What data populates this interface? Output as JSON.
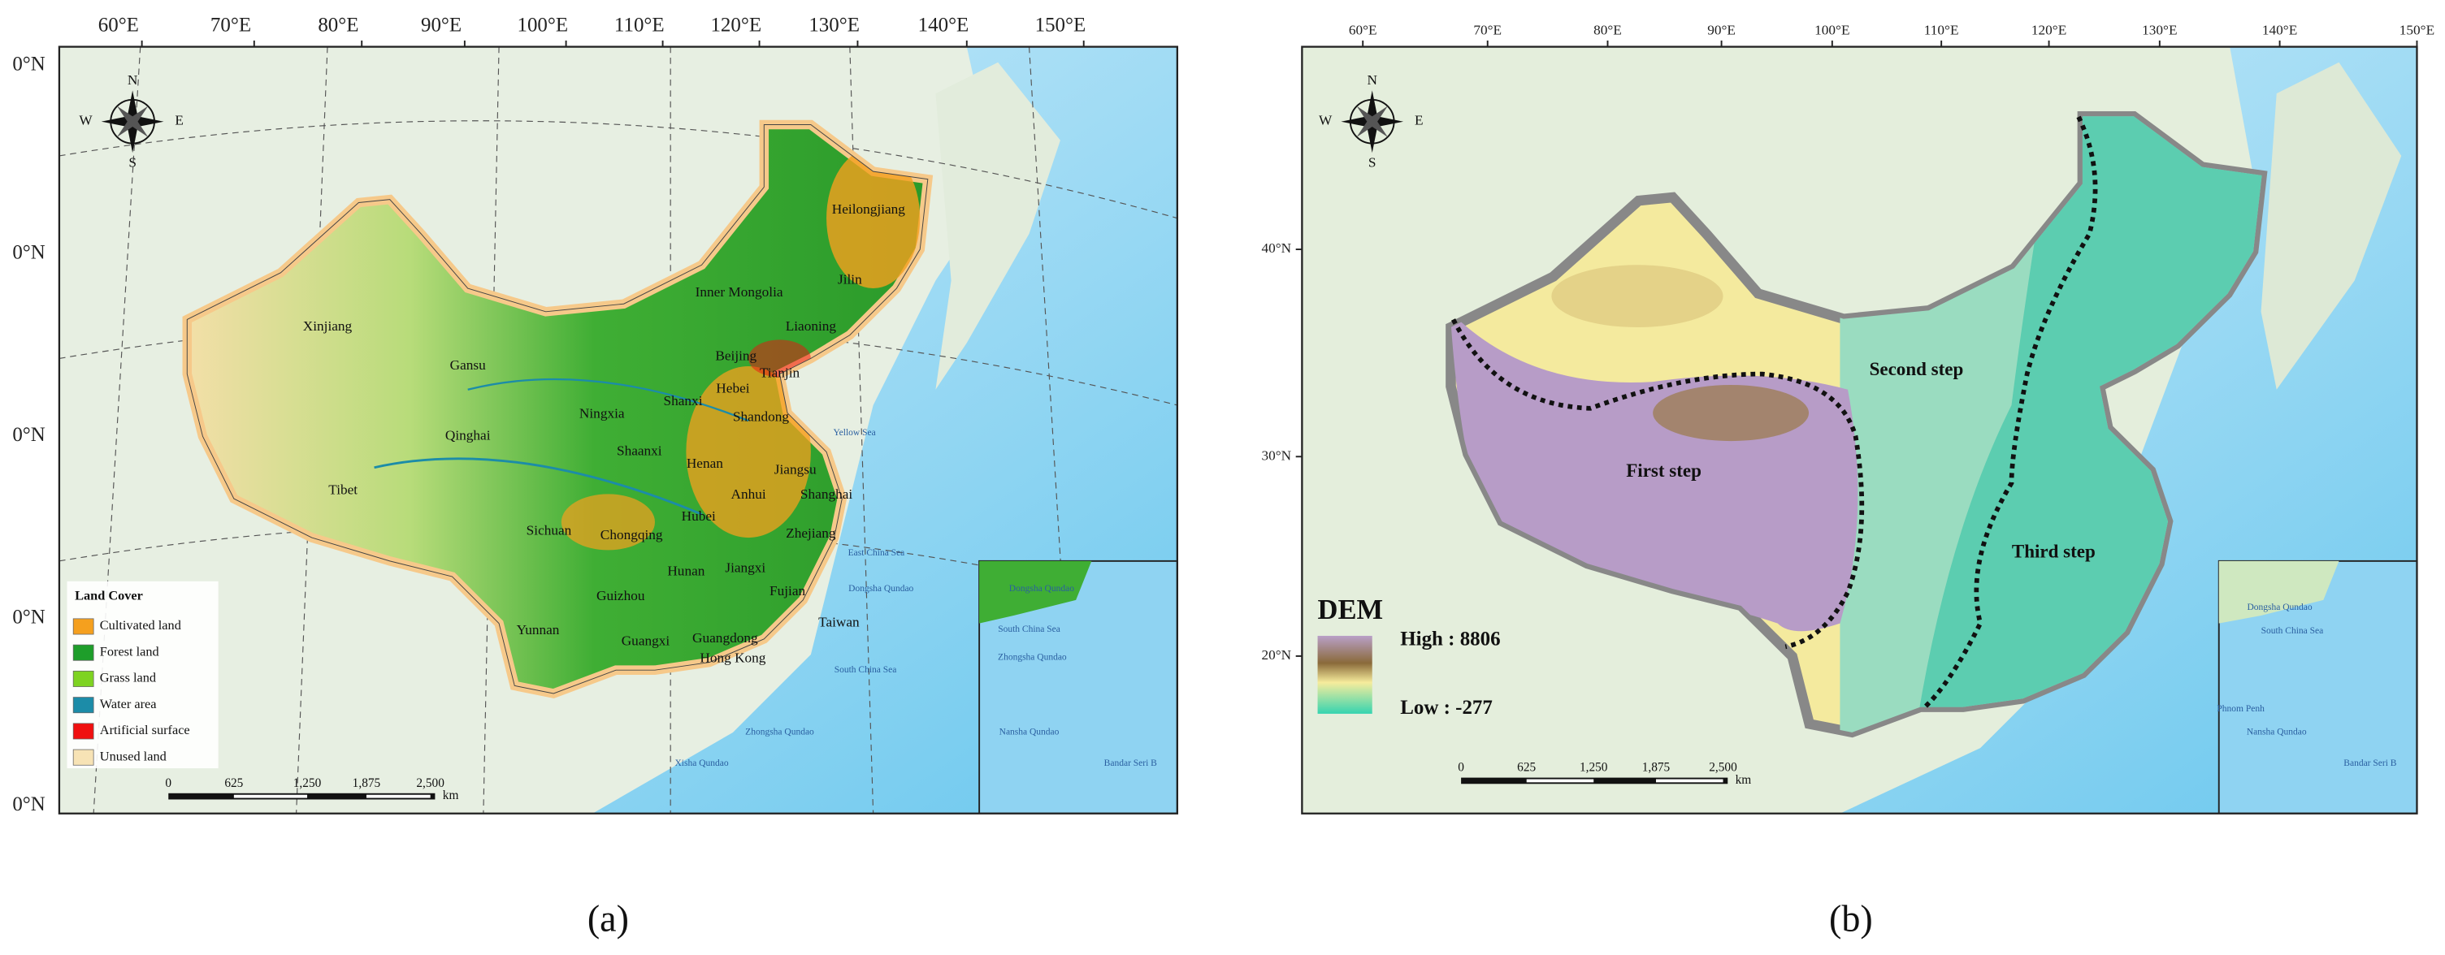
{
  "panel_a": {
    "label": "(a)",
    "longitude_labels": [
      "60°E",
      "70°E",
      "80°E",
      "90°E",
      "100°E",
      "110°E",
      "120°E",
      "130°E",
      "140°E",
      "150°E"
    ],
    "latitude_labels": [
      "0°N",
      "0°N",
      "0°N",
      "0°N",
      "0°N"
    ],
    "compass": {
      "n": "N",
      "s": "S",
      "e": "E",
      "w": "W"
    },
    "place_labels": [
      "Heilongjiang",
      "Jilin",
      "Inner Mongolia",
      "Liaoning",
      "Xinjiang",
      "Gansu",
      "Beijing",
      "Hebei",
      "Tianjin",
      "Ningxia",
      "Shanxi",
      "Shandong",
      "Qinghai",
      "Shaanxi",
      "Henan",
      "Jiangsu",
      "Tibet",
      "Anhui",
      "Shanghai",
      "Hubei",
      "Sichuan",
      "Chongqing",
      "Zhejiang",
      "Hunan",
      "Jiangxi",
      "Guizhou",
      "Fujian",
      "Taiwan",
      "Yunnan",
      "Guangxi",
      "Guangdong",
      "Hong Kong"
    ],
    "sea_labels": [
      "Yellow Sea",
      "East China Sea",
      "Dongsha Qundao",
      "South China Sea",
      "Zhongsha Qundao",
      "Xisha Qundao"
    ],
    "legend": {
      "title": "Land Cover",
      "items": [
        {
          "label": "Cultivated land",
          "color": "#f5a01e"
        },
        {
          "label": "Forest land",
          "color": "#1e9e2a"
        },
        {
          "label": "Grass land",
          "color": "#7ed321"
        },
        {
          "label": "Water area",
          "color": "#1c8ca8"
        },
        {
          "label": "Artificial surface",
          "color": "#f01010"
        },
        {
          "label": "Unused land",
          "color": "#f7e3b5"
        }
      ]
    },
    "scale_bar": {
      "ticks": [
        "0",
        "625",
        "1,250",
        "1,875",
        "2,500"
      ],
      "unit": "km"
    },
    "inset_labels": [
      "Dongsha Qundao",
      "South China Sea",
      "Zhongsha Qundao",
      "Nansha Qundao",
      "Bandar Seri B"
    ]
  },
  "panel_b": {
    "label": "(b)",
    "longitude_labels": [
      "60°E",
      "70°E",
      "80°E",
      "90°E",
      "100°E",
      "110°E",
      "120°E",
      "130°E",
      "140°E",
      "150°E"
    ],
    "latitude_labels": [
      "40°N",
      "30°N",
      "20°N"
    ],
    "compass": {
      "n": "N",
      "s": "S",
      "e": "E",
      "w": "W"
    },
    "dem_legend": {
      "title": "DEM",
      "high": "High : 8806",
      "low": "Low : -277"
    },
    "step_labels": [
      "First step",
      "Second step",
      "Third step"
    ],
    "scale_bar": {
      "ticks": [
        "0",
        "625",
        "1,250",
        "1,875",
        "2,500"
      ],
      "unit": "km"
    },
    "inset_labels": [
      "Dongsha Qundao",
      "South China Sea",
      "Phnom Penh",
      "Nansha Qundao",
      "Bandar Seri B"
    ]
  }
}
